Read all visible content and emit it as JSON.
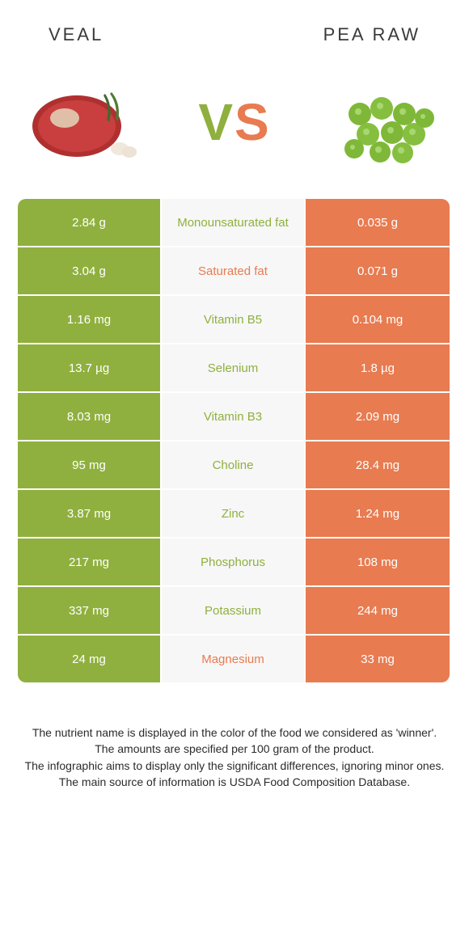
{
  "colors": {
    "left_food": "#8fb03e",
    "right_food": "#e87b50",
    "mid_bg": "#f7f7f7",
    "text_dark": "#3a3a3a",
    "footer_text": "#2b2b2b",
    "white": "#ffffff"
  },
  "header": {
    "left_title": "VEAL",
    "right_title": "PEA RAW"
  },
  "vs": {
    "v": "V",
    "s": "S",
    "fontsize": 64
  },
  "rows": [
    {
      "left": "2.84 g",
      "label": "Monounsaturated fat",
      "right": "0.035 g",
      "winner": "left"
    },
    {
      "left": "3.04 g",
      "label": "Saturated fat",
      "right": "0.071 g",
      "winner": "right"
    },
    {
      "left": "1.16 mg",
      "label": "Vitamin B5",
      "right": "0.104 mg",
      "winner": "left"
    },
    {
      "left": "13.7 µg",
      "label": "Selenium",
      "right": "1.8 µg",
      "winner": "left"
    },
    {
      "left": "8.03 mg",
      "label": "Vitamin B3",
      "right": "2.09 mg",
      "winner": "left"
    },
    {
      "left": "95 mg",
      "label": "Choline",
      "right": "28.4 mg",
      "winner": "left"
    },
    {
      "left": "3.87 mg",
      "label": "Zinc",
      "right": "1.24 mg",
      "winner": "left"
    },
    {
      "left": "217 mg",
      "label": "Phosphorus",
      "right": "108 mg",
      "winner": "left"
    },
    {
      "left": "337 mg",
      "label": "Potassium",
      "right": "244 mg",
      "winner": "left"
    },
    {
      "left": "24 mg",
      "label": "Magnesium",
      "right": "33 mg",
      "winner": "right"
    }
  ],
  "footer": {
    "line1": "The nutrient name is displayed in the color of the food we considered as 'winner'.",
    "line2": "The amounts are specified per 100 gram of the product.",
    "line3": "The infographic aims to display only the significant differences, ignoring minor ones.",
    "line4": "The main source of information is USDA Food Composition Database."
  }
}
